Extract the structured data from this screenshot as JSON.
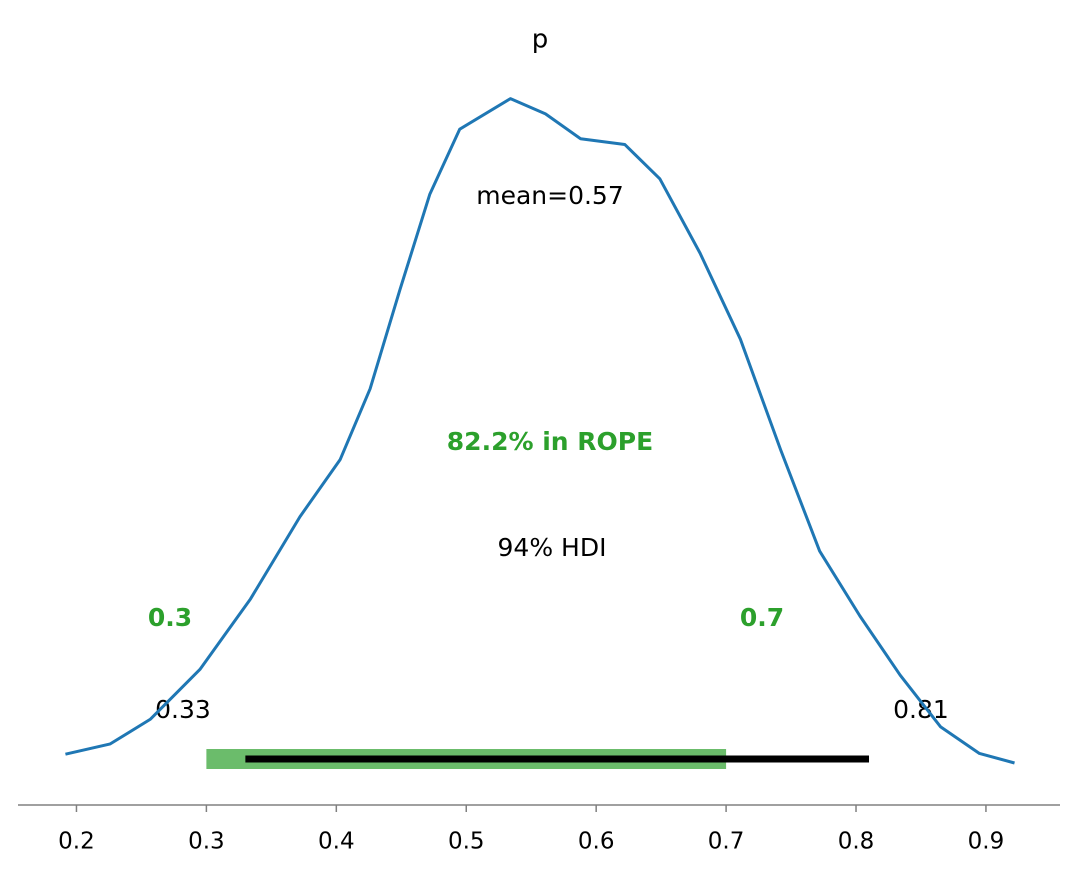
{
  "chart_data": {
    "type": "density",
    "title": "p",
    "x": [
      0.1915,
      0.226,
      0.257,
      0.295,
      0.334,
      0.372,
      0.403,
      0.426,
      0.449,
      0.472,
      0.495,
      0.534,
      0.561,
      0.588,
      0.622,
      0.649,
      0.68,
      0.711,
      0.742,
      0.772,
      0.803,
      0.834,
      0.865,
      0.895,
      0.922
    ],
    "values": [
      0.116,
      0.17,
      0.3,
      0.56,
      0.93,
      1.36,
      1.66,
      2.03,
      2.55,
      3.05,
      3.39,
      3.55,
      3.47,
      3.34,
      3.31,
      3.13,
      2.74,
      2.29,
      1.71,
      1.18,
      0.84,
      0.53,
      0.26,
      0.12,
      0.07
    ],
    "color": "#1f77b4",
    "xlim": [
      0.155,
      0.957
    ],
    "ylim": [
      -0.15,
      3.7
    ],
    "xticks": [
      0.2,
      0.3,
      0.4,
      0.5,
      0.6,
      0.7,
      0.8,
      0.9
    ],
    "mean_label": "mean=0.57",
    "rope": [
      0.3,
      0.7
    ],
    "rope_label": "82.2% in ROPE",
    "rope_color": "#2ca02c",
    "hdi": [
      0.33,
      0.81
    ],
    "hdi_label": "94% HDI"
  }
}
